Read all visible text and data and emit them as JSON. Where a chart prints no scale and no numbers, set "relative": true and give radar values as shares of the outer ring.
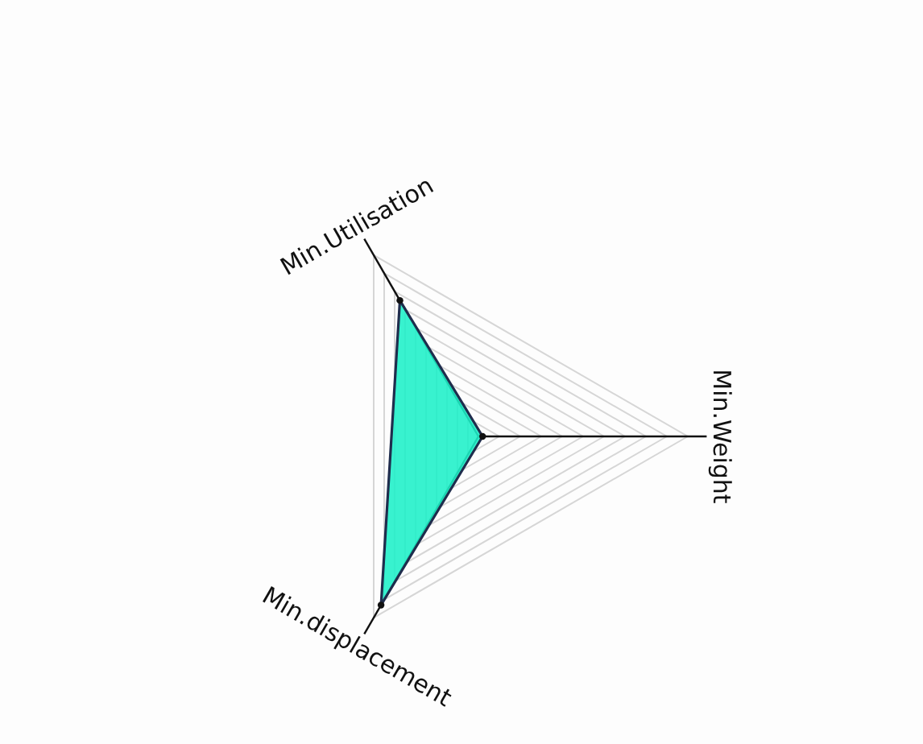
{
  "chart_data": {
    "type": "radar",
    "relative": true,
    "categories": [
      "Min.Weight",
      "Min.displacement",
      "Min.Utilisation"
    ],
    "series": [
      {
        "color": "#1df0c8",
        "values": [
          0.02,
          0.93,
          0.75
        ]
      }
    ],
    "grid": true,
    "marker": "circle"
  }
}
